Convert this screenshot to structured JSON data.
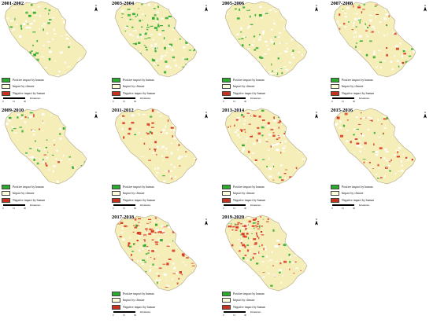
{
  "panels": [
    {
      "period": "2001-2002",
      "green": 0.1,
      "red": 0.0,
      "nw_red": 0.0
    },
    {
      "period": "2003-2004",
      "green": 0.28,
      "red": 0.0,
      "nw_red": 0.0
    },
    {
      "period": "2005-2006",
      "green": 0.12,
      "red": 0.0,
      "nw_red": 0.0
    },
    {
      "period": "2007-2008",
      "green": 0.08,
      "red": 0.1,
      "nw_red": 0.15
    },
    {
      "period": "2009-2010",
      "green": 0.08,
      "red": 0.03,
      "nw_red": 0.05
    },
    {
      "period": "2011-2012",
      "green": 0.03,
      "red": 0.1,
      "nw_red": 0.18
    },
    {
      "period": "2013-2014",
      "green": 0.03,
      "red": 0.1,
      "nw_red": 0.25
    },
    {
      "period": "2015-2016",
      "green": 0.03,
      "red": 0.08,
      "nw_red": 0.3
    },
    {
      "period": "2017-2018",
      "green": 0.05,
      "red": 0.12,
      "nw_red": 0.55
    },
    {
      "period": "2019-2020",
      "green": 0.05,
      "red": 0.1,
      "nw_red": 0.75
    }
  ],
  "legend": {
    "items": [
      {
        "label": "Positive impact by human",
        "color": "#2eaa2e"
      },
      {
        "label": "Impact by climate",
        "color": "#fdfcdc"
      },
      {
        "label": "Negative impact by human",
        "color": "#c8331c"
      }
    ]
  },
  "scale": {
    "ticks": [
      "0",
      "15",
      "30"
    ],
    "unit": "Kilometers"
  },
  "north_label": "N",
  "colors": {
    "base": "#f5eeb8",
    "edge": "#b0a888",
    "green": "#2eaa2e",
    "red": "#d8351e",
    "white": "#ffffff"
  }
}
